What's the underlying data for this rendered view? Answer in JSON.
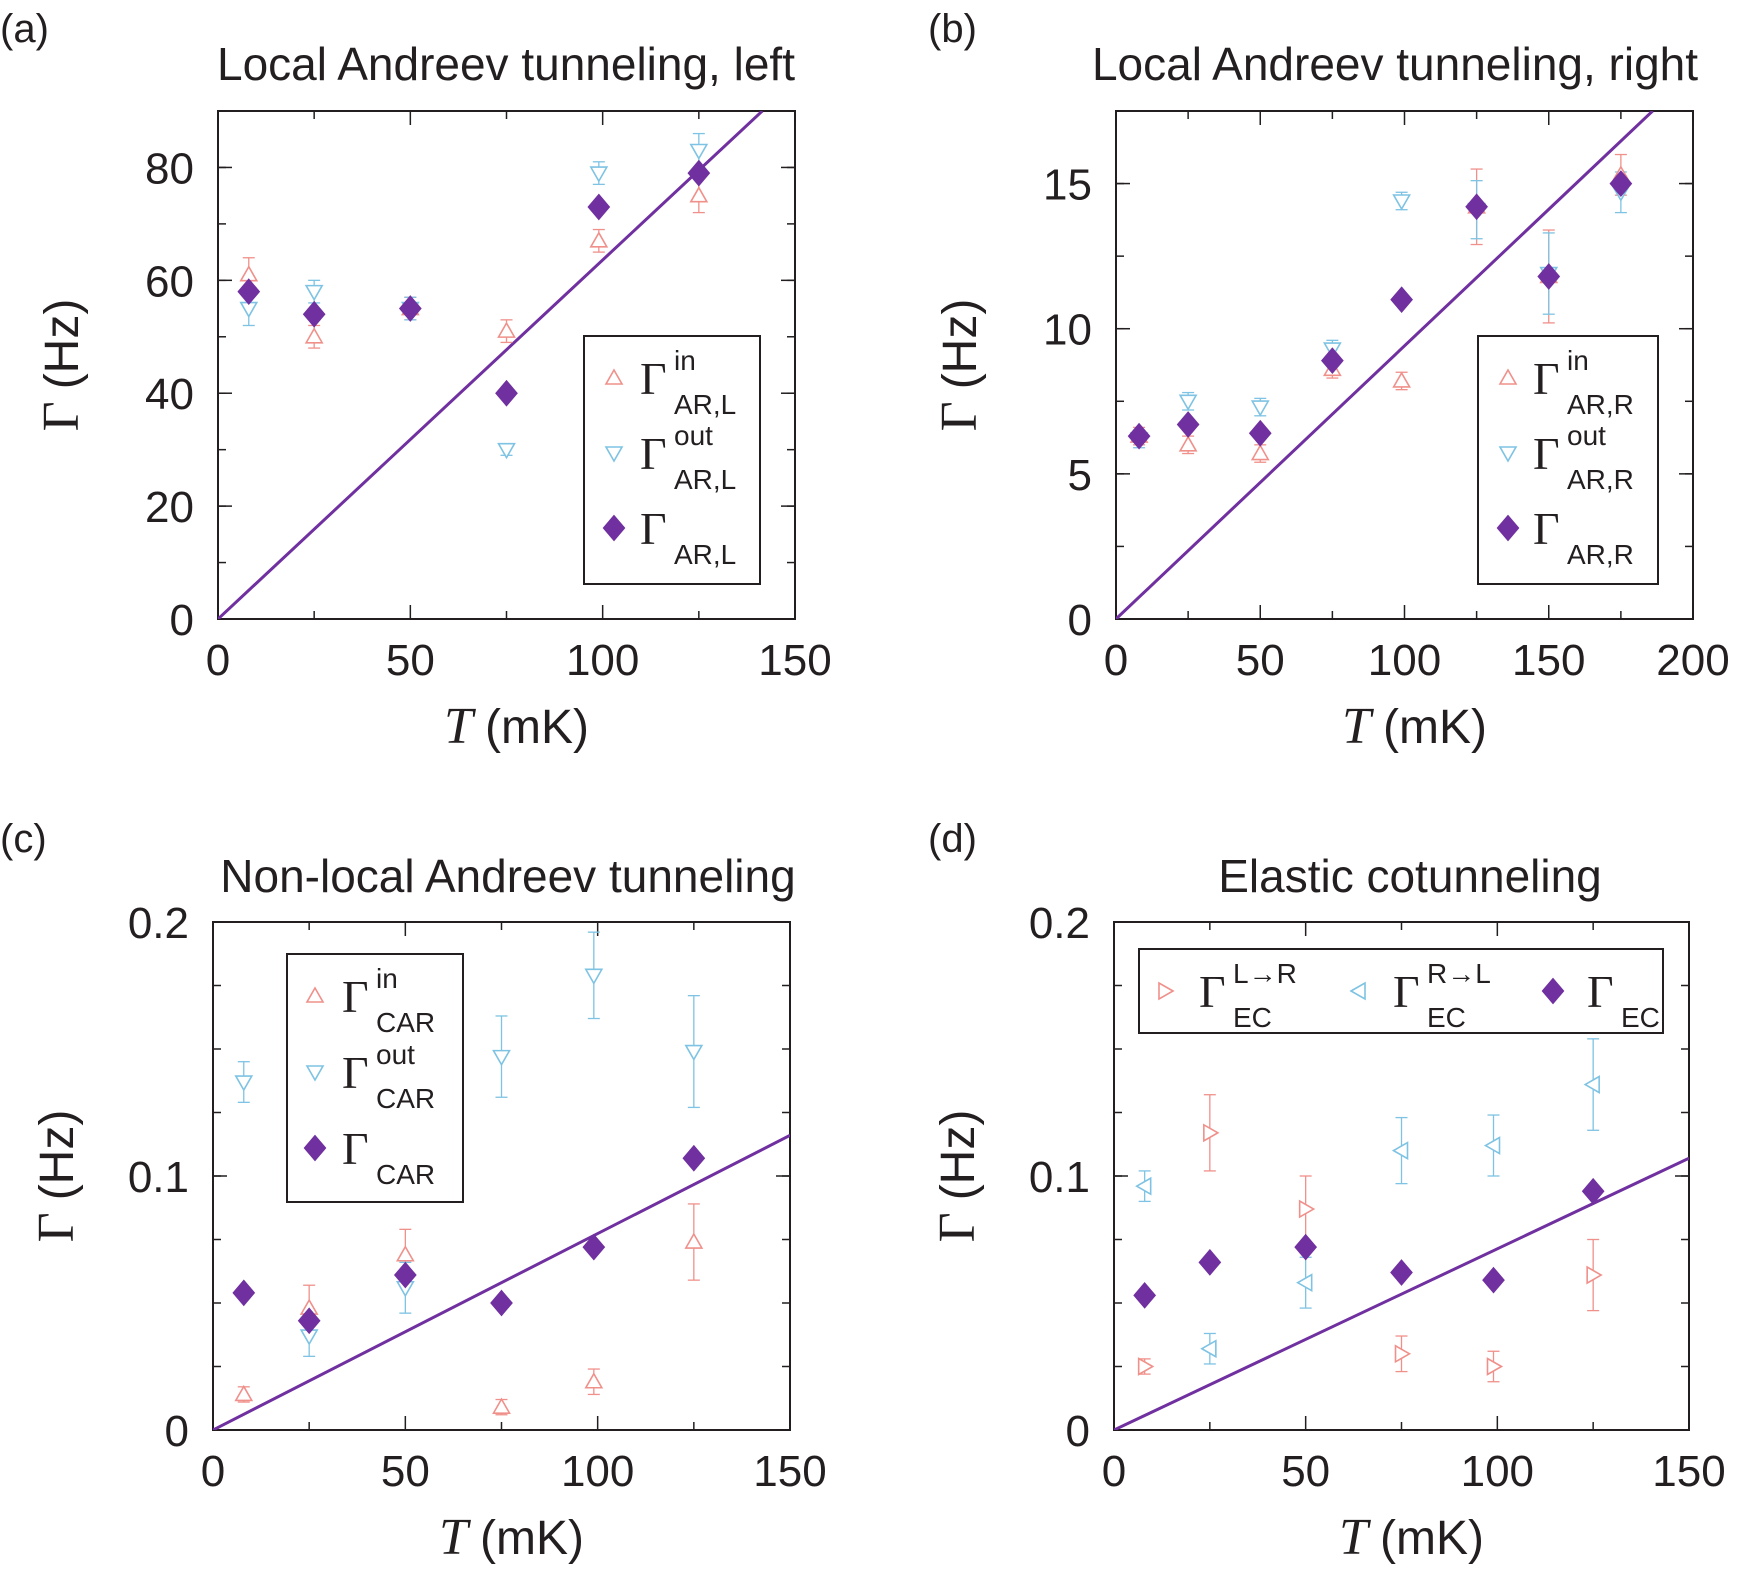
{
  "colors": {
    "in": "#f0908a",
    "out": "#7ec3e3",
    "total": "#7030a0",
    "axis": "#231f20"
  },
  "chart_data": [
    {
      "panel": "(a)",
      "title": "Local Andreev tunneling, left",
      "type": "scatter",
      "xlabel_var": "T",
      "xlabel_unit": "(mK)",
      "ylabel_sym": "Γ",
      "ylabel_unit": "(Hz)",
      "xlim": [
        0,
        150
      ],
      "ylim": [
        0,
        90
      ],
      "xticks": [
        "0",
        "50",
        "100",
        "150"
      ],
      "xtick_values": [
        0,
        50,
        100,
        150
      ],
      "yticks": [
        "0",
        "20",
        "40",
        "60",
        "80"
      ],
      "ytick_values": [
        0,
        20,
        40,
        60,
        80
      ],
      "legend_position": "right",
      "legend_layout": "vertical",
      "series": [
        {
          "key": "in",
          "marker": "triangle-up",
          "gamma": "Γ",
          "sup": "in",
          "sub": "AR,L",
          "x": [
            8,
            25,
            50,
            75,
            99,
            125
          ],
          "y": [
            61,
            50,
            55,
            51,
            67,
            75
          ],
          "err": [
            3,
            2,
            2,
            2,
            2,
            3
          ]
        },
        {
          "key": "out",
          "marker": "triangle-down",
          "gamma": "Γ",
          "sup": "out",
          "sub": "AR,L",
          "x": [
            8,
            25,
            50,
            75,
            99,
            125
          ],
          "y": [
            55,
            58,
            55,
            30,
            79,
            83
          ],
          "err": [
            3,
            2,
            2,
            1,
            2,
            3
          ]
        },
        {
          "key": "total",
          "marker": "diamond",
          "gamma": "Γ",
          "sup": "",
          "sub": "AR,L",
          "x": [
            8,
            25,
            50,
            75,
            99,
            125
          ],
          "y": [
            58,
            54,
            55,
            40,
            73,
            79
          ],
          "err": []
        }
      ],
      "fit_line": {
        "x": [
          0,
          141.5
        ],
        "y": [
          0,
          90
        ]
      }
    },
    {
      "panel": "(b)",
      "title": "Local Andreev tunneling, right",
      "type": "scatter",
      "xlabel_var": "T",
      "xlabel_unit": "(mK)",
      "ylabel_sym": "Γ",
      "ylabel_unit": "(Hz)",
      "xlim": [
        0,
        200
      ],
      "ylim": [
        0,
        17.5
      ],
      "xticks": [
        "0",
        "50",
        "100",
        "150",
        "200"
      ],
      "xtick_values": [
        0,
        50,
        100,
        150,
        200
      ],
      "yticks": [
        "0",
        "5",
        "10",
        "15"
      ],
      "ytick_values": [
        0,
        5,
        10,
        15
      ],
      "legend_position": "right",
      "legend_layout": "vertical",
      "series": [
        {
          "key": "in",
          "marker": "triangle-up",
          "gamma": "Γ",
          "sup": "in",
          "sub": "AR,R",
          "x": [
            8,
            25,
            50,
            75,
            99,
            125,
            150,
            175
          ],
          "y": [
            6.3,
            6.0,
            5.7,
            8.6,
            8.2,
            14.2,
            11.8,
            15.3
          ],
          "err": [
            0.3,
            0.3,
            0.3,
            0.3,
            0.3,
            1.3,
            1.6,
            0.7
          ]
        },
        {
          "key": "out",
          "marker": "triangle-down",
          "gamma": "Γ",
          "sup": "out",
          "sub": "AR,R",
          "x": [
            8,
            25,
            50,
            75,
            99,
            125,
            150,
            175
          ],
          "y": [
            6.2,
            7.5,
            7.3,
            9.3,
            14.4,
            14.1,
            11.9,
            14.7
          ],
          "err": [
            0.3,
            0.3,
            0.3,
            0.3,
            0.3,
            1.0,
            1.4,
            0.7
          ]
        },
        {
          "key": "total",
          "marker": "diamond",
          "gamma": "Γ",
          "sup": "",
          "sub": "AR,R",
          "x": [
            8,
            25,
            50,
            75,
            99,
            125,
            150,
            175
          ],
          "y": [
            6.3,
            6.7,
            6.4,
            8.9,
            11.0,
            14.2,
            11.8,
            15.0
          ],
          "err": []
        }
      ],
      "fit_line": {
        "x": [
          0,
          186
        ],
        "y": [
          0,
          17.5
        ]
      }
    },
    {
      "panel": "(c)",
      "title": "Non-local Andreev tunneling",
      "type": "scatter",
      "xlabel_var": "T",
      "xlabel_unit": "(mK)",
      "ylabel_sym": "Γ",
      "ylabel_unit": "(Hz)",
      "xlim": [
        0,
        150
      ],
      "ylim": [
        0,
        0.2
      ],
      "xticks": [
        "0",
        "50",
        "100",
        "150"
      ],
      "xtick_values": [
        0,
        50,
        100,
        150
      ],
      "yticks": [
        "0",
        "0.1",
        "0.2"
      ],
      "ytick_values": [
        0,
        0.1,
        0.2
      ],
      "legend_position": "upper-left",
      "legend_layout": "vertical",
      "series": [
        {
          "key": "in",
          "marker": "triangle-up",
          "gamma": "Γ",
          "sup": "in",
          "sub": "CAR",
          "x": [
            8,
            25,
            50,
            75,
            99,
            125
          ],
          "y": [
            0.014,
            0.048,
            0.069,
            0.009,
            0.019,
            0.074
          ],
          "err": [
            0.003,
            0.009,
            0.01,
            0.003,
            0.005,
            0.015
          ]
        },
        {
          "key": "out",
          "marker": "triangle-down",
          "gamma": "Γ",
          "sup": "out",
          "sub": "CAR",
          "x": [
            8,
            25,
            50,
            75,
            99,
            125
          ],
          "y": [
            0.137,
            0.037,
            0.056,
            0.147,
            0.179,
            0.149
          ],
          "err": [
            0.008,
            0.008,
            0.01,
            0.016,
            0.017,
            0.022
          ]
        },
        {
          "key": "total",
          "marker": "diamond",
          "gamma": "Γ",
          "sup": "",
          "sub": "CAR",
          "x": [
            8,
            25,
            50,
            75,
            99,
            125
          ],
          "y": [
            0.054,
            0.043,
            0.061,
            0.05,
            0.072,
            0.107
          ],
          "err": []
        }
      ],
      "fit_line": {
        "x": [
          0,
          150
        ],
        "y": [
          0,
          0.116
        ]
      }
    },
    {
      "panel": "(d)",
      "title": "Elastic cotunneling",
      "type": "scatter",
      "xlabel_var": "T",
      "xlabel_unit": "(mK)",
      "ylabel_sym": "Γ",
      "ylabel_unit": "(Hz)",
      "xlim": [
        0,
        150
      ],
      "ylim": [
        0,
        0.2
      ],
      "xticks": [
        "0",
        "50",
        "100",
        "150"
      ],
      "xtick_values": [
        0,
        50,
        100,
        150
      ],
      "yticks": [
        "0",
        "0.1",
        "0.2"
      ],
      "ytick_values": [
        0,
        0.1,
        0.2
      ],
      "legend_position": "top",
      "legend_layout": "horizontal",
      "series": [
        {
          "key": "in",
          "marker": "triangle-right",
          "gamma": "Γ",
          "sup": "L→R",
          "sub": "EC",
          "x": [
            8,
            25,
            50,
            75,
            99,
            125
          ],
          "y": [
            0.025,
            0.117,
            0.087,
            0.03,
            0.025,
            0.061
          ],
          "err": [
            0.003,
            0.015,
            0.013,
            0.007,
            0.006,
            0.014
          ]
        },
        {
          "key": "out",
          "marker": "triangle-left",
          "gamma": "Γ",
          "sup": "R→L",
          "sub": "EC",
          "x": [
            8,
            25,
            50,
            75,
            99,
            125
          ],
          "y": [
            0.096,
            0.032,
            0.058,
            0.11,
            0.112,
            0.136
          ],
          "err": [
            0.006,
            0.006,
            0.01,
            0.013,
            0.012,
            0.018
          ]
        },
        {
          "key": "total",
          "marker": "diamond",
          "gamma": "Γ",
          "sup": "",
          "sub": "EC",
          "x": [
            8,
            25,
            50,
            75,
            99,
            125
          ],
          "y": [
            0.053,
            0.066,
            0.072,
            0.062,
            0.059,
            0.094
          ],
          "err": []
        }
      ],
      "fit_line": {
        "x": [
          0,
          150
        ],
        "y": [
          0,
          0.107
        ]
      }
    }
  ]
}
